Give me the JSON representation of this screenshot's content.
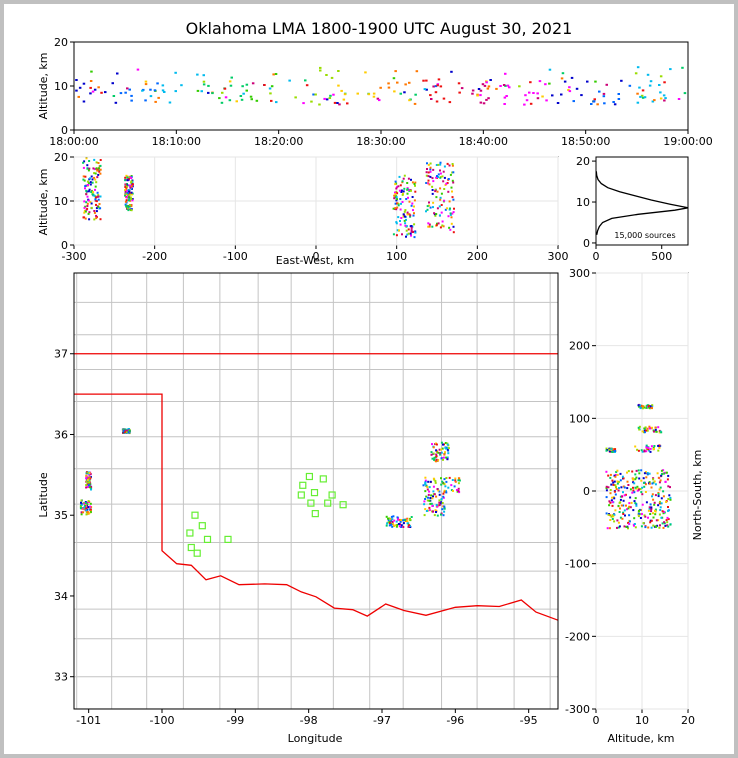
{
  "title": "Oklahoma LMA 1800-1900 UTC August 30, 2021",
  "source_count_label": "15,000 sources",
  "colors": {
    "state_border": "#ee0000",
    "county": "#c4c4c4",
    "station": "#66ee33",
    "histogram": "#000000"
  },
  "chart_data": [
    {
      "name": "time-height",
      "type": "scatter",
      "ylabel": "Altitude, km",
      "xlabel": "",
      "xlim": [
        "18:00:00",
        "19:00:00"
      ],
      "ylim": [
        0,
        20
      ],
      "xticks": [
        "18:00:00",
        "18:10:00",
        "18:20:00",
        "18:30:00",
        "18:40:00",
        "18:50:00",
        "19:00:00"
      ],
      "yticks": [
        0,
        10,
        20
      ],
      "color_by": "time",
      "source_band_km": [
        6,
        15
      ]
    },
    {
      "name": "ew-altitude",
      "type": "scatter",
      "xlabel": "East-West, km",
      "ylabel": "Altitude, km",
      "xlim": [
        -300,
        300
      ],
      "ylim": [
        0,
        20
      ],
      "xticks": [
        -300,
        -200,
        -100,
        0,
        100,
        200,
        300
      ],
      "yticks": [
        0,
        10,
        20
      ],
      "clusters": [
        {
          "x": [
            -290,
            -268
          ],
          "y": [
            6,
            20
          ]
        },
        {
          "x": [
            -238,
            -228
          ],
          "y": [
            8,
            16
          ]
        },
        {
          "x": [
            95,
            122
          ],
          "y": [
            2,
            16
          ]
        },
        {
          "x": [
            135,
            170
          ],
          "y": [
            3,
            19
          ]
        }
      ]
    },
    {
      "name": "altitude-histogram",
      "type": "line",
      "xlabel": "",
      "xlim": [
        0,
        700
      ],
      "ylim": [
        0,
        20
      ],
      "xticks": [
        0,
        500
      ],
      "yticks": [
        0,
        10,
        20
      ],
      "profile": [
        {
          "alt": 2,
          "count": 5
        },
        {
          "alt": 3,
          "count": 12
        },
        {
          "alt": 4,
          "count": 25
        },
        {
          "alt": 5,
          "count": 50
        },
        {
          "alt": 6,
          "count": 120
        },
        {
          "alt": 7,
          "count": 320
        },
        {
          "alt": 8,
          "count": 600
        },
        {
          "alt": 8.6,
          "count": 700
        },
        {
          "alt": 9.5,
          "count": 560
        },
        {
          "alt": 10.5,
          "count": 420
        },
        {
          "alt": 11.5,
          "count": 300
        },
        {
          "alt": 12.5,
          "count": 180
        },
        {
          "alt": 13.5,
          "count": 90
        },
        {
          "alt": 14.5,
          "count": 40
        },
        {
          "alt": 15.5,
          "count": 15
        },
        {
          "alt": 16.5,
          "count": 5
        },
        {
          "alt": 17.5,
          "count": 2
        }
      ]
    },
    {
      "name": "plan-view",
      "type": "scatter",
      "xlabel": "Longitude",
      "ylabel": "Latitude",
      "xlim": [
        -101.2,
        -94.6
      ],
      "ylim": [
        32.6,
        38
      ],
      "xticks": [
        -101,
        -100,
        -99,
        -98,
        -97,
        -96,
        -95
      ],
      "yticks": [
        33,
        34,
        35,
        36,
        37
      ],
      "stations": [
        {
          "lon": -99.55,
          "lat": 35.0
        },
        {
          "lon": -99.45,
          "lat": 34.87
        },
        {
          "lon": -99.62,
          "lat": 34.78
        },
        {
          "lon": -99.38,
          "lat": 34.7
        },
        {
          "lon": -99.6,
          "lat": 34.6
        },
        {
          "lon": -99.52,
          "lat": 34.53
        },
        {
          "lon": -99.1,
          "lat": 34.7
        },
        {
          "lon": -97.99,
          "lat": 35.48
        },
        {
          "lon": -97.8,
          "lat": 35.45
        },
        {
          "lon": -98.08,
          "lat": 35.37
        },
        {
          "lon": -98.1,
          "lat": 35.25
        },
        {
          "lon": -97.92,
          "lat": 35.28
        },
        {
          "lon": -97.68,
          "lat": 35.25
        },
        {
          "lon": -97.97,
          "lat": 35.15
        },
        {
          "lon": -97.74,
          "lat": 35.15
        },
        {
          "lon": -97.53,
          "lat": 35.13
        },
        {
          "lon": -97.91,
          "lat": 35.02
        }
      ],
      "clusters": [
        {
          "lon": [
            -101.05,
            -100.98
          ],
          "lat": [
            35.33,
            35.55
          ]
        },
        {
          "lon": [
            -101.12,
            -100.98
          ],
          "lat": [
            35.02,
            35.2
          ]
        },
        {
          "lon": [
            -100.55,
            -100.45
          ],
          "lat": [
            36.03,
            36.08
          ]
        },
        {
          "lon": [
            -96.35,
            -96.1
          ],
          "lat": [
            35.68,
            35.92
          ]
        },
        {
          "lon": [
            -96.45,
            -95.95
          ],
          "lat": [
            35.28,
            35.48
          ]
        },
        {
          "lon": [
            -96.45,
            -96.15
          ],
          "lat": [
            35.0,
            35.28
          ]
        },
        {
          "lon": [
            -96.95,
            -96.6
          ],
          "lat": [
            34.86,
            35.0
          ]
        }
      ]
    },
    {
      "name": "altitude-ns",
      "type": "scatter",
      "xlabel": "Altitude, km",
      "ylabel": "North-South, km",
      "xlim": [
        0,
        20
      ],
      "ylim": [
        -300,
        300
      ],
      "xticks": [
        0,
        10,
        20
      ],
      "yticks": [
        -300,
        -200,
        -100,
        0,
        100,
        200,
        300
      ],
      "clusters": [
        {
          "x": [
            2,
            16
          ],
          "y": [
            -50,
            30
          ]
        },
        {
          "x": [
            8,
            14
          ],
          "y": [
            55,
            65
          ]
        },
        {
          "x": [
            2,
            4
          ],
          "y": [
            55,
            60
          ]
        },
        {
          "x": [
            9,
            12
          ],
          "y": [
            115,
            120
          ]
        },
        {
          "x": [
            9,
            14
          ],
          "y": [
            82,
            90
          ]
        }
      ]
    }
  ]
}
